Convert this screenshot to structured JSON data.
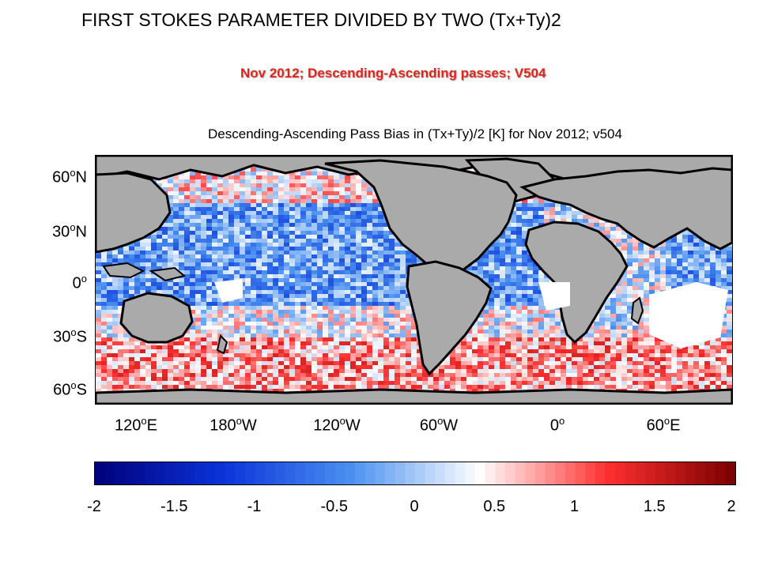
{
  "slide": {
    "title": "FIRST STOKES PARAMETER DIVIDED BY TWO (Tx+Ty)2",
    "subtitle": "Nov 2012; Descending-Ascending passes; V504"
  },
  "plot": {
    "title": "Descending-Ascending Pass Bias in (Tx+Ty)/2 [K] for Nov 2012; v504",
    "lat_labels": [
      {
        "deg": "60",
        "hemi": "N"
      },
      {
        "deg": "30",
        "hemi": "N"
      },
      {
        "deg": "0",
        "hemi": ""
      },
      {
        "deg": "30",
        "hemi": "S"
      },
      {
        "deg": "60",
        "hemi": "S"
      }
    ],
    "lon_labels": [
      {
        "deg": "120",
        "hemi": "E"
      },
      {
        "deg": "180",
        "hemi": "W"
      },
      {
        "deg": "120",
        "hemi": "W"
      },
      {
        "deg": "60",
        "hemi": "W"
      },
      {
        "deg": "0",
        "hemi": ""
      },
      {
        "deg": "60",
        "hemi": "E"
      }
    ]
  },
  "colorbar": {
    "min": -2,
    "max": 2,
    "ticks": [
      "-2",
      "-1.5",
      "-1",
      "-0.5",
      "0",
      "0.5",
      "1",
      "1.5",
      "2"
    ],
    "colormap": [
      "#00007a",
      "#0a33d9",
      "#4a90f0",
      "#ffffff",
      "#ff3030",
      "#7a0000"
    ]
  },
  "colors": {
    "land": "#aaaaaa",
    "coast": "#000000",
    "subtitle": "#e0261c"
  }
}
